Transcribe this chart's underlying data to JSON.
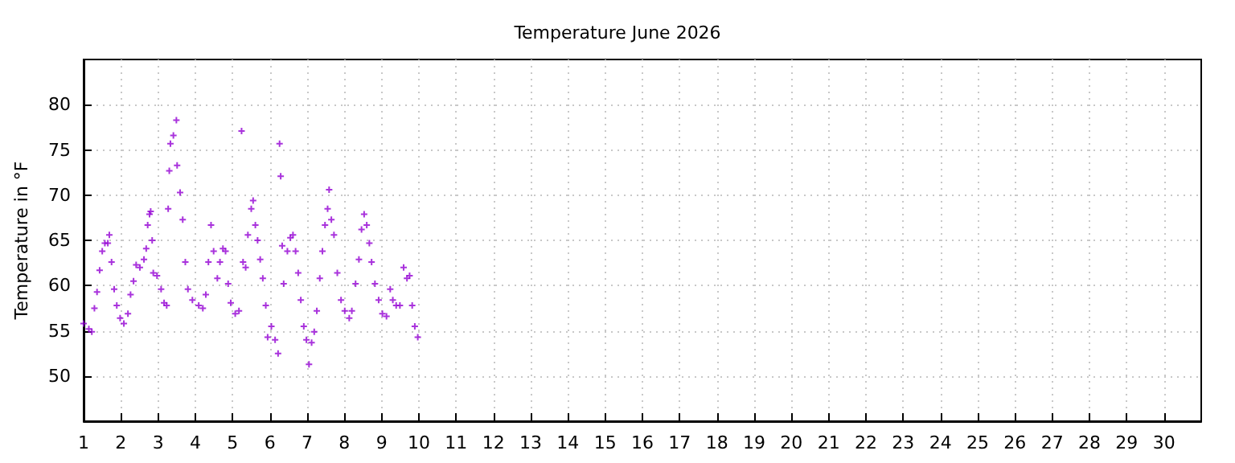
{
  "chart_data": {
    "type": "scatter",
    "title": "Temperature June 2026",
    "ylabel": "Temperature in °F",
    "xlim": [
      1,
      31
    ],
    "xticks": [
      1,
      2,
      3,
      4,
      5,
      6,
      7,
      8,
      9,
      10,
      11,
      12,
      13,
      14,
      15,
      16,
      17,
      18,
      19,
      20,
      21,
      22,
      23,
      24,
      25,
      26,
      27,
      28,
      29,
      30
    ],
    "ylim": [
      45,
      85
    ],
    "yticks": [
      50,
      55,
      60,
      65,
      70,
      75,
      80
    ],
    "grid": true,
    "marker": "cross",
    "series": [
      {
        "color": "#9400d3",
        "x": [
          1.0,
          1.14,
          1.22,
          1.29,
          1.36,
          1.43,
          1.5,
          1.57,
          1.65,
          1.69,
          1.75,
          1.82,
          1.89,
          1.98,
          2.08,
          2.19,
          2.26,
          2.34,
          2.41,
          2.51,
          2.62,
          2.68,
          2.72,
          2.77,
          2.8,
          2.84,
          2.87,
          2.97,
          3.08,
          3.16,
          3.23,
          3.27,
          3.3,
          3.33,
          3.41,
          3.49,
          3.51,
          3.59,
          3.66,
          3.73,
          3.8,
          3.92,
          4.09,
          4.2,
          4.28,
          4.35,
          4.42,
          4.49,
          4.59,
          4.66,
          4.74,
          4.81,
          4.88,
          4.95,
          5.07,
          5.17,
          5.24,
          5.28,
          5.35,
          5.41,
          5.5,
          5.55,
          5.61,
          5.67,
          5.74,
          5.81,
          5.89,
          5.94,
          6.04,
          6.14,
          6.22,
          6.26,
          6.29,
          6.33,
          6.37,
          6.47,
          6.55,
          6.62,
          6.69,
          6.76,
          6.83,
          6.91,
          6.98,
          7.05,
          7.12,
          7.19,
          7.26,
          7.34,
          7.41,
          7.48,
          7.55,
          7.59,
          7.65,
          7.72,
          7.81,
          7.91,
          8.01,
          8.13,
          8.2,
          8.3,
          8.39,
          8.46,
          8.53,
          8.6,
          8.67,
          8.73,
          8.82,
          8.92,
          9.02,
          9.13,
          9.23,
          9.3,
          9.39,
          9.49,
          9.59,
          9.68,
          9.75,
          9.82,
          9.89,
          9.97
        ],
        "values": [
          55.8,
          55.2,
          54.9,
          57.5,
          59.3,
          61.7,
          63.8,
          64.7,
          64.7,
          65.6,
          62.6,
          59.6,
          57.8,
          56.4,
          55.8,
          56.9,
          59.0,
          60.5,
          62.3,
          62.0,
          62.9,
          64.1,
          66.7,
          67.9,
          68.2,
          65.0,
          61.4,
          61.1,
          59.6,
          58.1,
          57.8,
          68.5,
          72.7,
          75.7,
          76.6,
          78.3,
          73.3,
          70.3,
          67.3,
          62.6,
          59.6,
          58.4,
          57.8,
          57.5,
          59.0,
          62.6,
          66.7,
          63.8,
          60.8,
          62.6,
          64.1,
          63.8,
          60.2,
          58.1,
          56.9,
          57.2,
          77.1,
          62.6,
          62.0,
          65.6,
          68.5,
          69.4,
          66.7,
          65.0,
          62.9,
          60.8,
          57.8,
          54.3,
          55.5,
          54.0,
          52.5,
          75.7,
          72.1,
          64.4,
          60.2,
          63.8,
          65.3,
          65.6,
          63.8,
          61.4,
          58.4,
          55.5,
          54.0,
          51.3,
          53.7,
          54.9,
          57.2,
          60.8,
          63.8,
          66.7,
          68.5,
          70.6,
          67.3,
          65.6,
          61.4,
          58.4,
          57.2,
          56.4,
          57.2,
          60.2,
          62.9,
          66.2,
          67.9,
          66.7,
          64.7,
          62.6,
          60.2,
          58.4,
          56.9,
          56.6,
          59.6,
          58.4,
          57.8,
          57.8,
          62.0,
          60.8,
          61.1,
          57.8,
          55.5,
          54.3
        ]
      }
    ]
  }
}
